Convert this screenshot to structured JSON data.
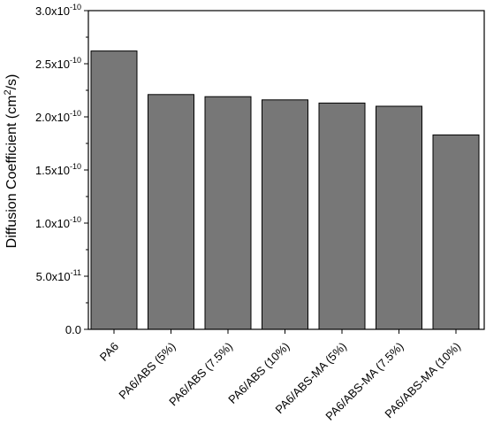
{
  "chart_data": {
    "type": "bar",
    "title": "",
    "xlabel": "",
    "ylabel": {
      "base": "Diffusion Coefficient (cm",
      "sup": "2",
      "tail": "/s)"
    },
    "categories": [
      "PA6",
      "PA6/ABS (5%)",
      "PA6/ABS (7.5%)",
      "PA6/ABS (10%)",
      "PA6/ABS-MA (5%)",
      "PA6/ABS-MA (7.5%)",
      "PA6/ABS-MA (10%)"
    ],
    "values": [
      2.62e-10,
      2.21e-10,
      2.19e-10,
      2.16e-10,
      2.13e-10,
      2.1e-10,
      1.83e-10
    ],
    "ylim": [
      0,
      3e-10
    ],
    "yticks": [
      {
        "mant": "0.0",
        "exp": ""
      },
      {
        "mant": "5.0x10",
        "exp": "-11"
      },
      {
        "mant": "1.0x10",
        "exp": "-10"
      },
      {
        "mant": "1.5x10",
        "exp": "-10"
      },
      {
        "mant": "2.0x10",
        "exp": "-10"
      },
      {
        "mant": "2.5x10",
        "exp": "-10"
      },
      {
        "mant": "3.0x10",
        "exp": "-10"
      }
    ],
    "ytick_values": [
      0,
      5e-11,
      1e-10,
      1.5e-10,
      2e-10,
      2.5e-10,
      3e-10
    ],
    "bar_color": "#777777",
    "grid": false,
    "legend": "none"
  }
}
